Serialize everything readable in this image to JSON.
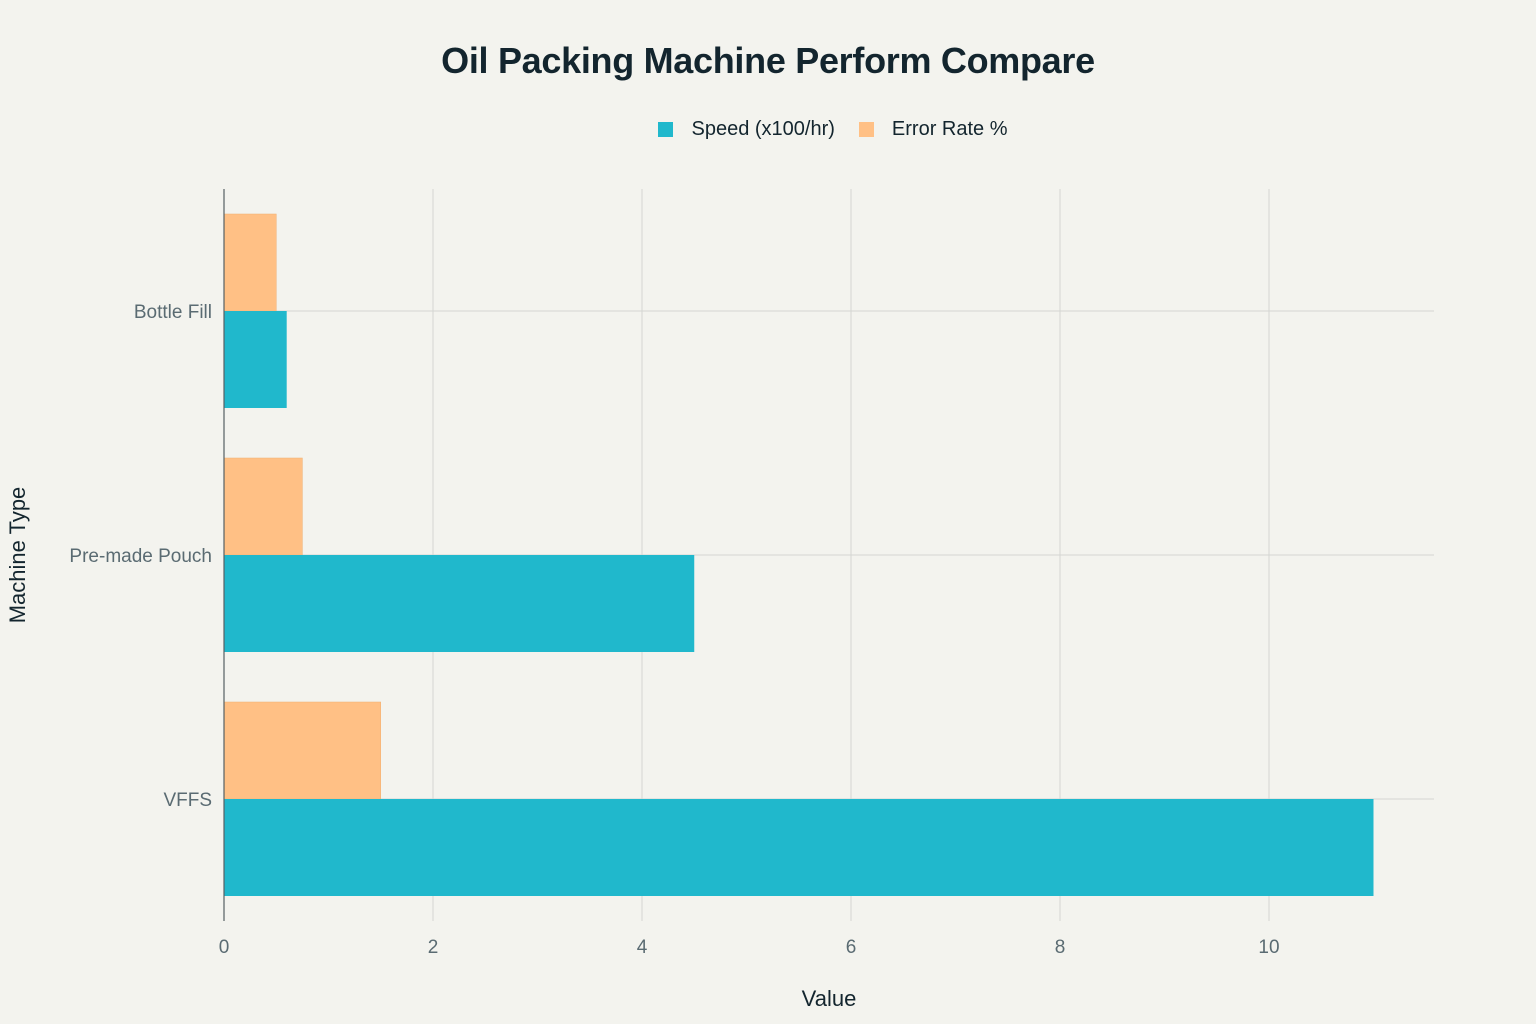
{
  "chart_data": {
    "type": "bar",
    "orientation": "horizontal",
    "title": "Oil Packing Machine Perform Compare",
    "xlabel": "Value",
    "ylabel": "Machine Type",
    "categories": [
      "Bottle Fill",
      "Pre-made Pouch",
      "VFFS"
    ],
    "series": [
      {
        "name": "Speed (x100/hr)",
        "color": "#20b8cc",
        "values": [
          0.6,
          4.5,
          11
        ]
      },
      {
        "name": "Error Rate %",
        "color": "#ffc085",
        "values": [
          0.5,
          0.75,
          1.5
        ]
      }
    ],
    "xlim": [
      0,
      11.5
    ],
    "xticks": [
      0,
      2,
      4,
      6,
      8,
      10
    ],
    "grid": true,
    "legend_position": "top-center"
  }
}
